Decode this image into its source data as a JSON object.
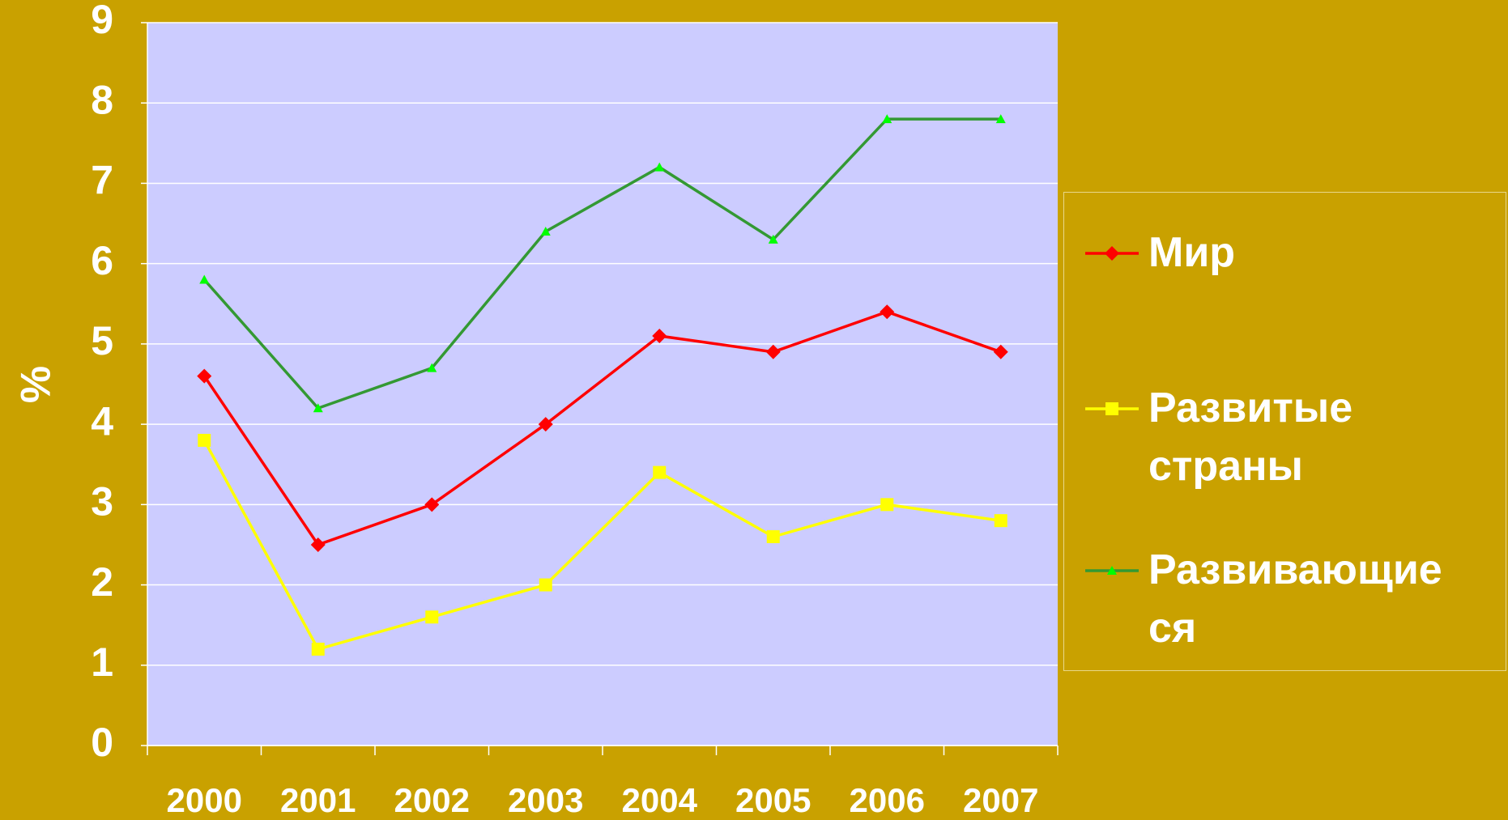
{
  "chart_data": {
    "type": "line",
    "categories": [
      "2000",
      "2001",
      "2002",
      "2003",
      "2004",
      "2005",
      "2006",
      "2007"
    ],
    "series": [
      {
        "name": "Мир",
        "color": "#ff0000",
        "marker": "diamond",
        "values": [
          4.6,
          2.5,
          3.0,
          4.0,
          5.1,
          4.9,
          5.4,
          4.9
        ]
      },
      {
        "name": "Развитые страны",
        "color": "#ffff00",
        "marker": "square",
        "values": [
          3.8,
          1.2,
          1.6,
          2.0,
          3.4,
          2.6,
          3.0,
          2.8
        ]
      },
      {
        "name": "Развивающие ся",
        "color": "#339933",
        "marker": "triangle",
        "values": [
          5.8,
          4.2,
          4.7,
          6.4,
          7.2,
          6.3,
          7.8,
          7.8
        ]
      }
    ],
    "ylabel": "%",
    "ylim": [
      0,
      9
    ],
    "yticks": [
      0,
      1,
      2,
      3,
      4,
      5,
      6,
      7,
      8,
      9
    ],
    "grid": true,
    "legend": "right"
  }
}
